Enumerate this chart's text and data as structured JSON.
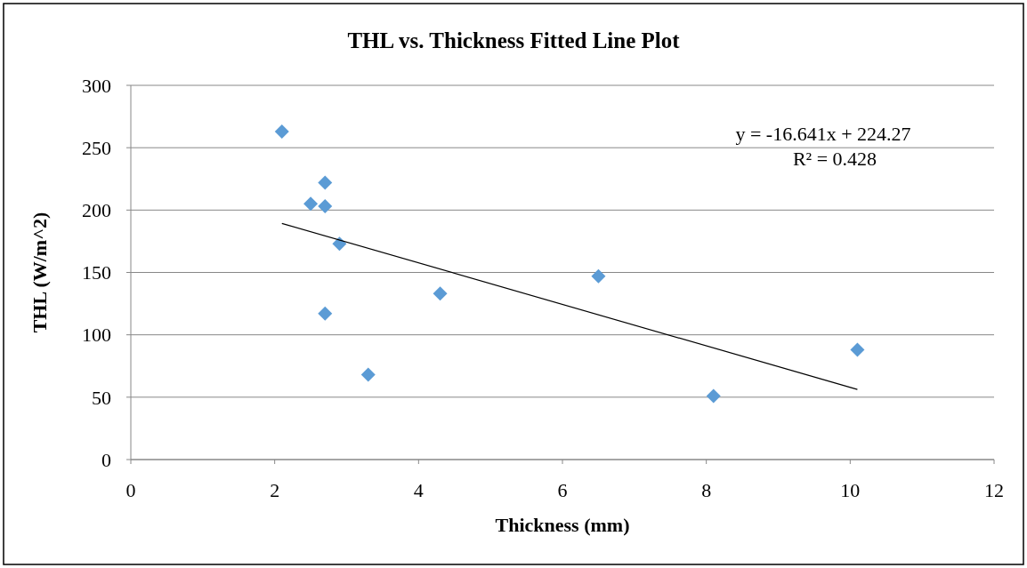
{
  "chart_data": {
    "type": "scatter",
    "title": "THL vs. Thickness Fitted Line Plot",
    "xlabel": "Thickness (mm)",
    "ylabel": "THL (W/m^2)",
    "xlim": [
      0,
      12
    ],
    "xticks": [
      0,
      2,
      4,
      6,
      8,
      10,
      12
    ],
    "ylim": [
      0,
      300
    ],
    "yticks": [
      0,
      50,
      100,
      150,
      200,
      250,
      300
    ],
    "grid": "y",
    "annotations": [
      "y = -16.641x + 224.27",
      "R² = 0.428"
    ],
    "series": [
      {
        "color": "#5b9bd5",
        "marker": "diamond",
        "x": [
          2.1,
          2.5,
          2.7,
          2.7,
          2.9,
          2.7,
          3.3,
          4.3,
          6.5,
          8.1,
          10.1
        ],
        "values": [
          263,
          205,
          222,
          203,
          173,
          117,
          68,
          133,
          147,
          51,
          88
        ]
      },
      {
        "type": "line",
        "color": "#000000",
        "marker": "none",
        "x": [
          2.1,
          10.1
        ],
        "values": [
          189.3,
          56.2
        ]
      }
    ]
  }
}
